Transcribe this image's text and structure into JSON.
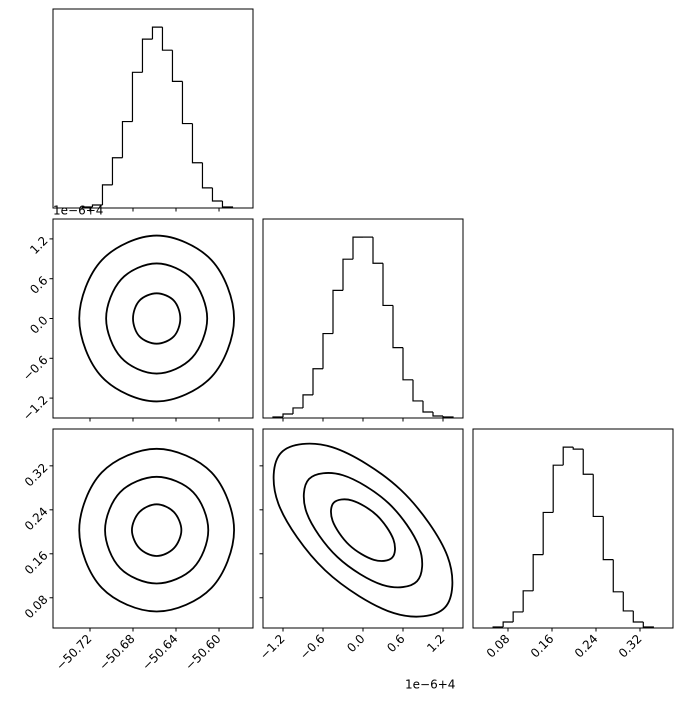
{
  "chart_data": [
    {
      "type": "histogram",
      "bins": [
        -50.727,
        -50.7177,
        -50.7084,
        -50.6991,
        -50.6898,
        -50.6805,
        -50.6712,
        -50.6619,
        -50.6526,
        -50.6433,
        -50.634,
        -50.6247,
        -50.6154,
        -50.6061,
        -50.5968,
        -50.5875
      ],
      "values": [
        1,
        3,
        23,
        50,
        86,
        135,
        168,
        180,
        157,
        126,
        84,
        45,
        20,
        7,
        1
      ],
      "color": "#000000",
      "xlim": [
        -50.7544,
        -50.5684
      ],
      "ylim": [
        0,
        198
      ],
      "xticks": [
        {
          "value": -50.72,
          "label": "−50.72"
        },
        {
          "value": -50.68,
          "label": "−50.68"
        },
        {
          "value": -50.64,
          "label": "−50.64"
        },
        {
          "value": -50.6,
          "label": "−50.60"
        }
      ],
      "xtick_labels": false
    },
    {
      "type": "contour",
      "color": "#000000",
      "xlim": [
        -50.7544,
        -50.5684
      ],
      "ylim": [
        -1.5,
        1.5
      ],
      "xticks": [
        {
          "value": -50.72,
          "label": "−50.72"
        },
        {
          "value": -50.68,
          "label": "−50.68"
        },
        {
          "value": -50.64,
          "label": "−50.64"
        },
        {
          "value": -50.6,
          "label": "−50.60"
        }
      ],
      "yticks": [
        1.2,
        0.6,
        {
          "value": 0,
          "label": "0.0"
        },
        {
          "value": -0.6,
          "label": "−0.6"
        },
        {
          "value": -1.2,
          "label": "−1.2"
        }
      ],
      "xtick_labels": false,
      "ytick_labels": true,
      "y_offset_label": "1e−6+4",
      "contours": [
        {
          "x": [
            -50.636,
            -50.642,
            -50.658,
            -50.674,
            -50.68,
            -50.674,
            -50.658,
            -50.642
          ],
          "y": [
            0,
            0.27,
            0.38,
            0.27,
            0,
            -0.27,
            -0.38,
            -0.27
          ]
        },
        {
          "x": [
            -50.611,
            -50.625,
            -50.658,
            -50.691,
            -50.705,
            -50.691,
            -50.658,
            -50.625
          ],
          "y": [
            0,
            0.59,
            0.83,
            0.59,
            0,
            -0.59,
            -0.83,
            -0.59
          ]
        },
        {
          "x": [
            -50.586,
            -50.607,
            -50.658,
            -50.709,
            -50.73,
            -50.709,
            -50.658,
            -50.607
          ],
          "y": [
            0,
            0.88,
            1.25,
            0.88,
            0,
            -0.88,
            -1.25,
            -0.88
          ]
        }
      ]
    },
    {
      "type": "histogram",
      "bins": [
        -1.35,
        -1.2,
        -1.05,
        -0.9,
        -0.75,
        -0.6,
        -0.45,
        -0.3,
        -0.15,
        0,
        0.15,
        0.3,
        0.45,
        0.6,
        0.75,
        0.9,
        1.05,
        1.2,
        1.35
      ],
      "values": [
        1,
        4,
        10,
        23,
        49,
        84,
        127,
        158,
        180,
        180,
        154,
        112,
        70,
        38,
        17,
        6,
        2,
        1
      ],
      "color": "#000000",
      "xlim": [
        -1.5,
        1.5
      ],
      "ylim": [
        0,
        198
      ],
      "xticks": [
        {
          "value": -1.2,
          "label": "−1.2"
        },
        {
          "value": -0.6,
          "label": "−0.6"
        },
        {
          "value": 0,
          "label": "0.0"
        },
        0.6,
        1.2
      ],
      "xtick_labels": false
    },
    {
      "type": "contour",
      "color": "#000000",
      "xlim": [
        -50.7544,
        -50.5684
      ],
      "ylim": [
        0.025,
        0.387
      ],
      "xticks": [
        {
          "value": -50.72,
          "label": "−50.72"
        },
        {
          "value": -50.68,
          "label": "−50.68"
        },
        {
          "value": -50.64,
          "label": "−50.64"
        },
        {
          "value": -50.6,
          "label": "−50.60"
        }
      ],
      "yticks": [
        0.32,
        0.24,
        0.16,
        0.08
      ],
      "xtick_labels": true,
      "ytick_labels": true,
      "contours": [
        {
          "x": [
            -50.635,
            -50.642,
            -50.658,
            -50.674,
            -50.681,
            -50.674,
            -50.658,
            -50.642
          ],
          "y": [
            0.203,
            0.236,
            0.25,
            0.236,
            0.203,
            0.17,
            0.156,
            0.17
          ]
        },
        {
          "x": [
            -50.61,
            -50.624,
            -50.658,
            -50.692,
            -50.706,
            -50.692,
            -50.658,
            -50.624
          ],
          "y": [
            0.203,
            0.272,
            0.3,
            0.272,
            0.203,
            0.134,
            0.106,
            0.134
          ]
        },
        {
          "x": [
            -50.586,
            -50.607,
            -50.658,
            -50.709,
            -50.73,
            -50.709,
            -50.658,
            -50.607
          ],
          "y": [
            0.203,
            0.308,
            0.351,
            0.308,
            0.203,
            0.098,
            0.055,
            0.098
          ]
        }
      ]
    },
    {
      "type": "contour",
      "color": "#000000",
      "xlim": [
        -1.5,
        1.5
      ],
      "ylim": [
        0.025,
        0.387
      ],
      "xticks": [
        {
          "value": -1.2,
          "label": "−1.2"
        },
        {
          "value": -0.6,
          "label": "−0.6"
        },
        {
          "value": 0,
          "label": "0.0"
        },
        0.6,
        1.2
      ],
      "yticks": [
        0.32,
        0.24,
        0.16,
        0.08
      ],
      "xtick_labels": true,
      "ytick_labels": false,
      "x_offset_label": "1e−6+4",
      "contours": [
        {
          "x": [
            0.438,
            0.456,
            0.207,
            -0.164,
            -0.438,
            -0.456,
            -0.207,
            0.164
          ],
          "y": [
            0.153,
            0.186,
            0.23,
            0.257,
            0.253,
            0.22,
            0.176,
            0.149
          ]
        },
        {
          "x": [
            0.81,
            0.843,
            0.383,
            -0.303,
            -0.81,
            -0.843,
            -0.383,
            0.303
          ],
          "y": [
            0.11,
            0.172,
            0.252,
            0.303,
            0.296,
            0.234,
            0.154,
            0.103
          ]
        },
        {
          "x": [
            1.227,
            1.269,
            0.569,
            -0.465,
            -1.227,
            -1.269,
            -0.569,
            0.465
          ],
          "y": [
            0.062,
            0.155,
            0.276,
            0.354,
            0.344,
            0.251,
            0.13,
            0.052
          ]
        }
      ]
    },
    {
      "type": "histogram",
      "bins": [
        0.053,
        0.0712,
        0.0894,
        0.1076,
        0.1258,
        0.144,
        0.1622,
        0.1804,
        0.1986,
        0.2168,
        0.235,
        0.2532,
        0.2714,
        0.2896,
        0.3078,
        0.326,
        0.3442
      ],
      "values": [
        1,
        6,
        16,
        37,
        73,
        115,
        162,
        180,
        178,
        153,
        111,
        68,
        36,
        17,
        6,
        1
      ],
      "color": "#000000",
      "xlim": [
        0.0164,
        0.38
      ],
      "ylim": [
        0,
        198
      ],
      "xticks": [
        0.08,
        0.16,
        0.24,
        0.32
      ],
      "xtick_labels": true
    }
  ]
}
